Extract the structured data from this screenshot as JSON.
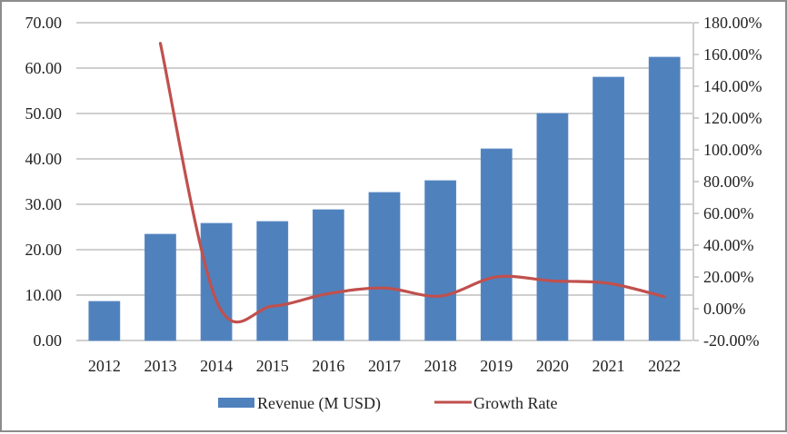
{
  "chart_data": {
    "type": "bar+line",
    "title": "",
    "categories": [
      "2012",
      "2013",
      "2014",
      "2015",
      "2016",
      "2017",
      "2018",
      "2019",
      "2020",
      "2021",
      "2022"
    ],
    "series": [
      {
        "name": "Revenue (M USD)",
        "type": "bar",
        "axis": "left",
        "color": "#4f81bd",
        "values": [
          8.6,
          23.4,
          25.8,
          26.2,
          28.8,
          32.6,
          35.2,
          42.2,
          50.0,
          58.0,
          62.4
        ]
      },
      {
        "name": "Growth Rate",
        "type": "line",
        "smooth": true,
        "axis": "right",
        "color": "#c0504d",
        "unit": "%",
        "values": [
          null,
          167.0,
          5.0,
          1.6,
          9.5,
          13.0,
          8.0,
          20.0,
          17.5,
          16.0,
          7.5
        ]
      }
    ],
    "left_axis": {
      "ylim": [
        0,
        70
      ],
      "ticks": [
        0,
        10,
        20,
        30,
        40,
        50,
        60,
        70
      ],
      "tick_labels": [
        "0.00",
        "10.00",
        "20.00",
        "30.00",
        "40.00",
        "50.00",
        "60.00",
        "70.00"
      ]
    },
    "right_axis": {
      "ylim": [
        -20,
        180
      ],
      "ticks": [
        -20,
        0,
        20,
        40,
        60,
        80,
        100,
        120,
        140,
        160,
        180
      ],
      "tick_labels": [
        "-20.00%",
        "0.00%",
        "20.00%",
        "40.00%",
        "60.00%",
        "80.00%",
        "100.00%",
        "120.00%",
        "140.00%",
        "160.00%",
        "180.00%"
      ]
    },
    "grid": true,
    "legend_position": "bottom",
    "legend": [
      "Revenue (M USD)",
      "Growth Rate"
    ],
    "xlabel": "",
    "ylabel": ""
  }
}
